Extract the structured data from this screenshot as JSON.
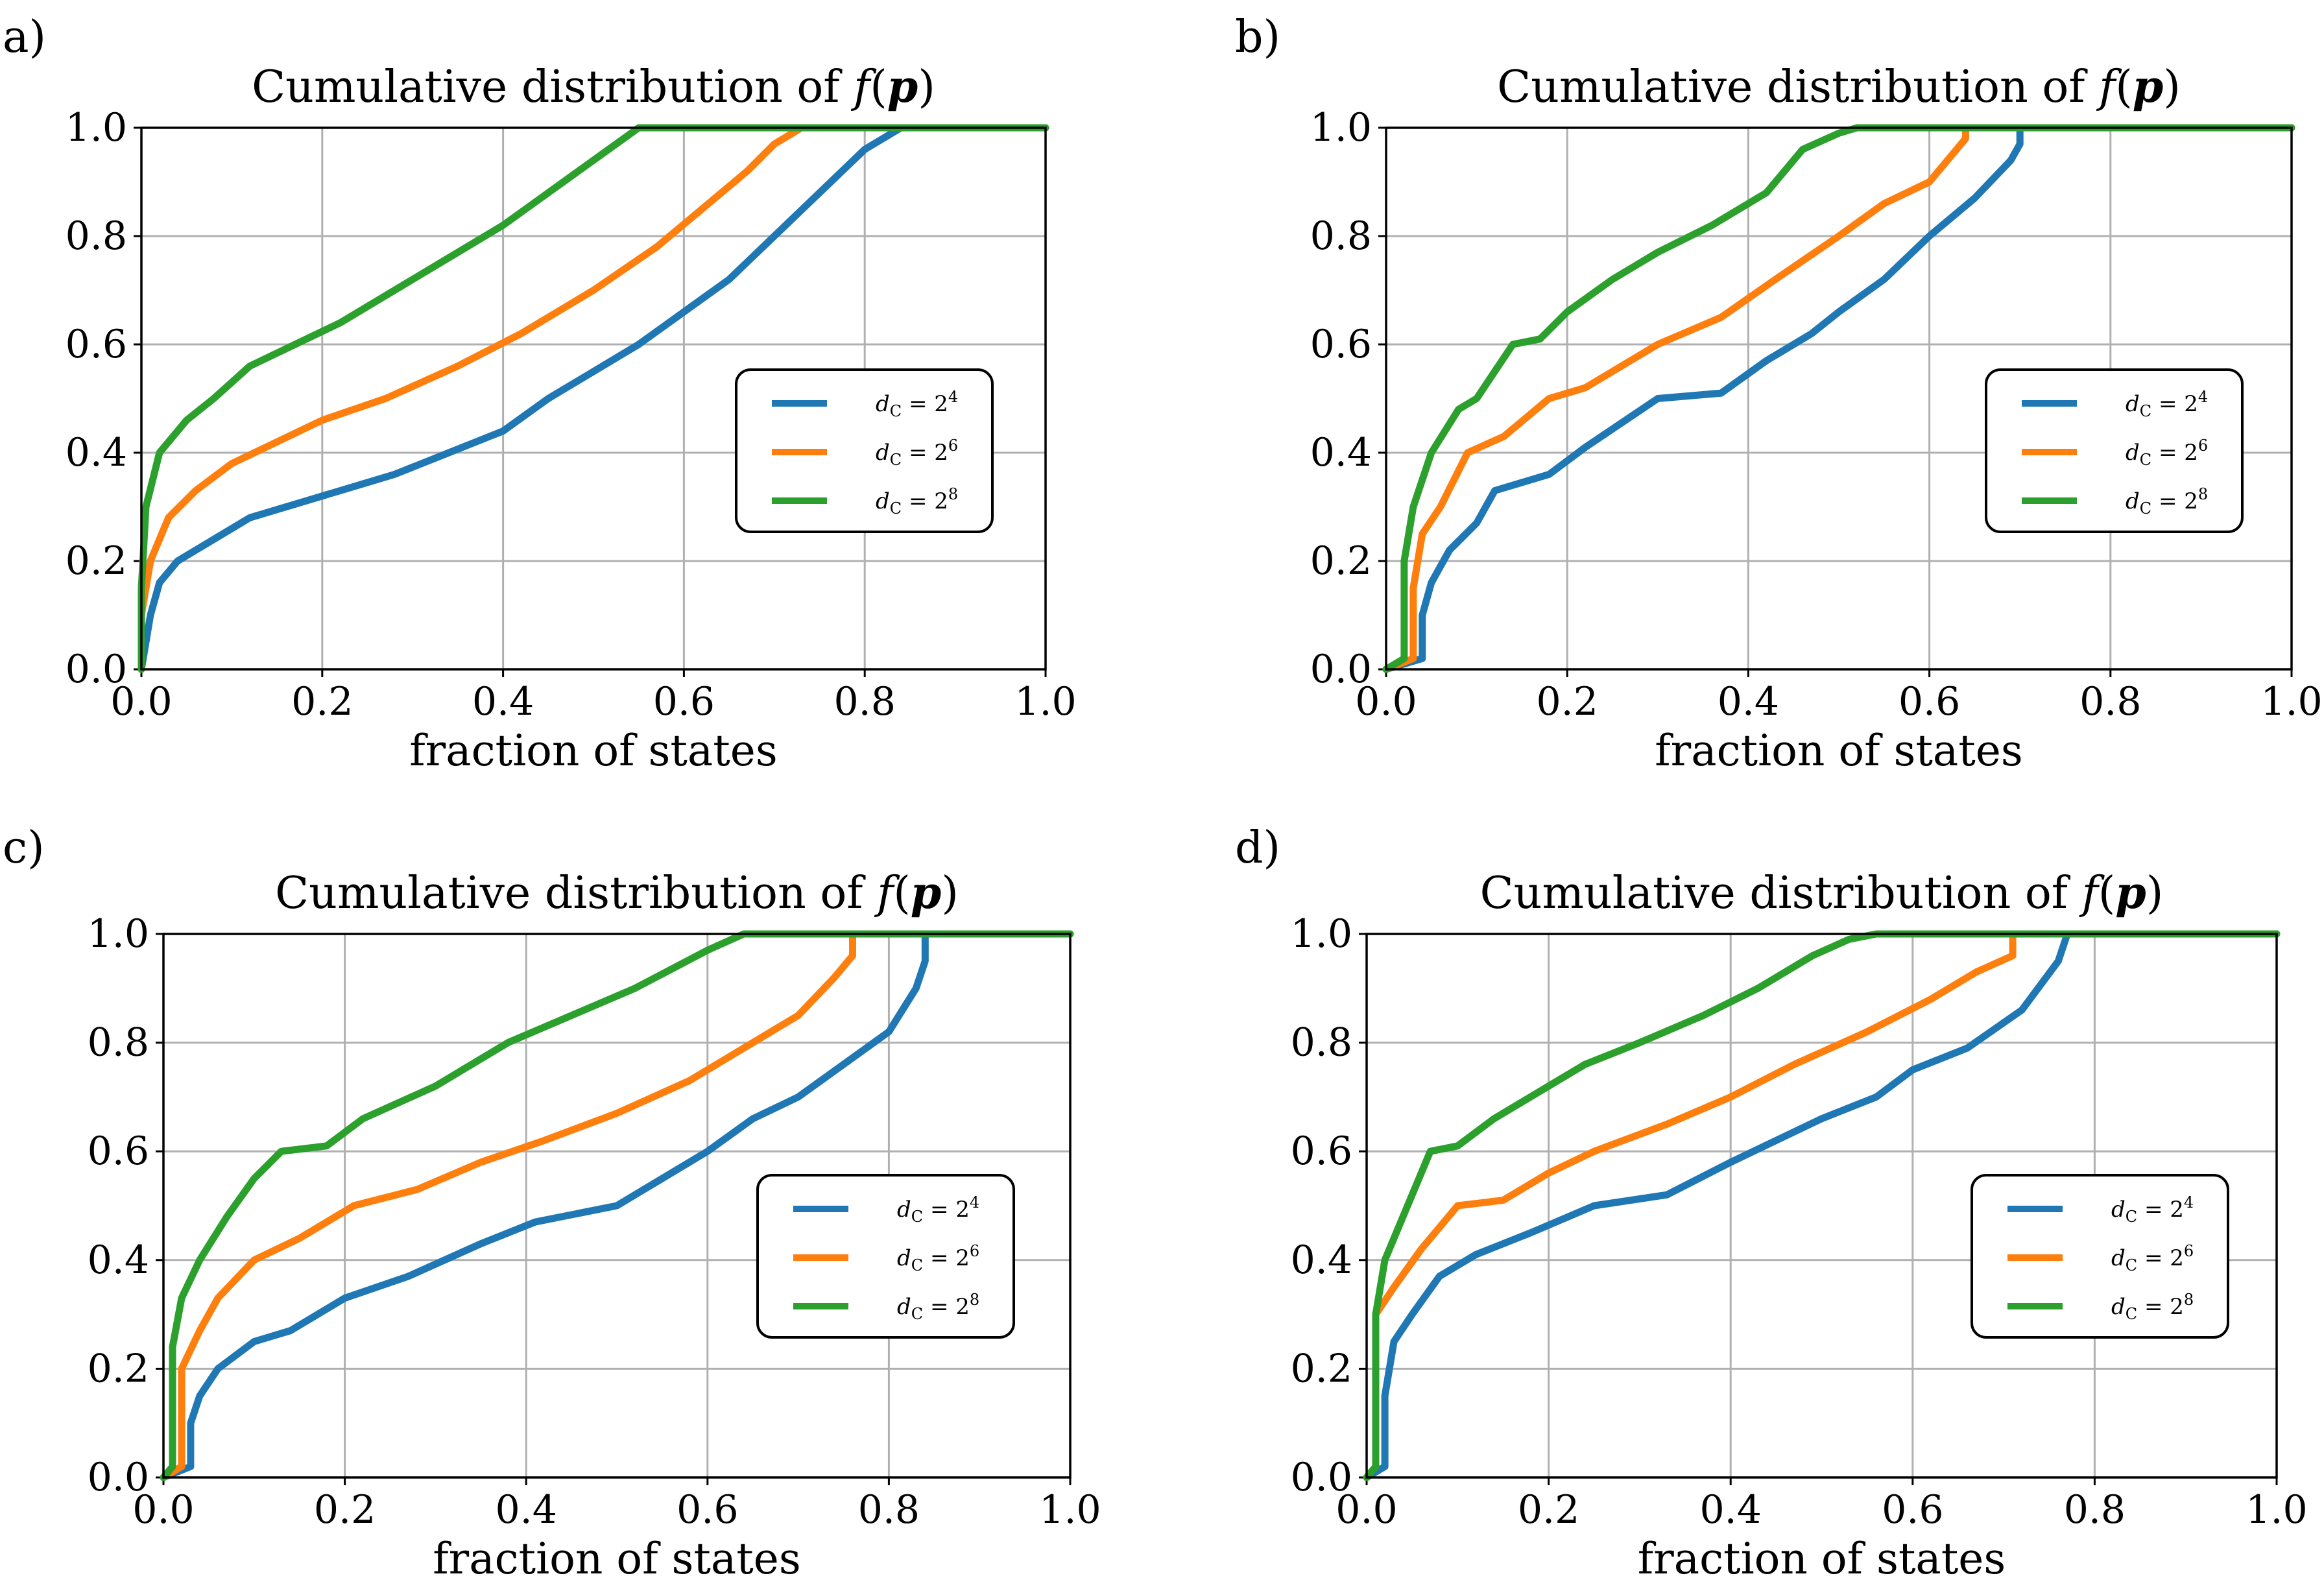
{
  "colors": {
    "s4": "#1f77b4",
    "s6": "#ff7f0e",
    "s8": "#2ca02c",
    "grid": "#b0b0b0"
  },
  "chart_data": [
    {
      "panel_label": "a)",
      "type": "line",
      "title": "Cumulative distribution of f(p)",
      "xlabel": "fraction of states",
      "ylabel": "",
      "xlim": [
        0,
        1
      ],
      "ylim": [
        0,
        1
      ],
      "xticks": [
        "0.0",
        "0.2",
        "0.4",
        "0.6",
        "0.8",
        "1.0"
      ],
      "yticks": [
        "0.0",
        "0.2",
        "0.4",
        "0.6",
        "0.8",
        "1.0"
      ],
      "grid": true,
      "legend_position": "center-right",
      "series": [
        {
          "name": "d_C = 2^4",
          "legend_base": "d",
          "legend_sub": "C",
          "legend_rhs": "= 2",
          "legend_exp": "4",
          "color": "#1f77b4",
          "x": [
            0.0,
            0.0,
            0.01,
            0.02,
            0.04,
            0.08,
            0.12,
            0.2,
            0.28,
            0.34,
            0.4,
            0.45,
            0.5,
            0.55,
            0.6,
            0.65,
            0.7,
            0.75,
            0.8,
            0.84,
            1.0
          ],
          "y": [
            0.0,
            0.0,
            0.1,
            0.16,
            0.2,
            0.24,
            0.28,
            0.32,
            0.36,
            0.4,
            0.44,
            0.5,
            0.55,
            0.6,
            0.66,
            0.72,
            0.8,
            0.88,
            0.96,
            1.0,
            1.0
          ]
        },
        {
          "name": "d_C = 2^6",
          "legend_base": "d",
          "legend_sub": "C",
          "legend_rhs": "= 2",
          "legend_exp": "6",
          "color": "#ff7f0e",
          "x": [
            0.0,
            0.0,
            0.01,
            0.03,
            0.06,
            0.1,
            0.15,
            0.2,
            0.27,
            0.35,
            0.42,
            0.5,
            0.57,
            0.62,
            0.67,
            0.7,
            0.73,
            0.74,
            1.0
          ],
          "y": [
            0.0,
            0.1,
            0.2,
            0.28,
            0.33,
            0.38,
            0.42,
            0.46,
            0.5,
            0.56,
            0.62,
            0.7,
            0.78,
            0.85,
            0.92,
            0.97,
            1.0,
            1.0,
            1.0
          ]
        },
        {
          "name": "d_C = 2^8",
          "legend_base": "d",
          "legend_sub": "C",
          "legend_rhs": "= 2",
          "legend_exp": "8",
          "color": "#2ca02c",
          "x": [
            0.0,
            0.0,
            0.005,
            0.02,
            0.05,
            0.08,
            0.12,
            0.17,
            0.22,
            0.28,
            0.34,
            0.4,
            0.45,
            0.5,
            0.55,
            0.56,
            1.0
          ],
          "y": [
            0.0,
            0.15,
            0.3,
            0.4,
            0.46,
            0.5,
            0.56,
            0.6,
            0.64,
            0.7,
            0.76,
            0.82,
            0.88,
            0.94,
            1.0,
            1.0,
            1.0
          ]
        }
      ]
    },
    {
      "panel_label": "b)",
      "type": "line",
      "title": "Cumulative distribution of f(p)",
      "xlabel": "fraction of states",
      "ylabel": "",
      "xlim": [
        0,
        1
      ],
      "ylim": [
        0,
        1
      ],
      "xticks": [
        "0.0",
        "0.2",
        "0.4",
        "0.6",
        "0.8",
        "1.0"
      ],
      "yticks": [
        "0.0",
        "0.2",
        "0.4",
        "0.6",
        "0.8",
        "1.0"
      ],
      "grid": true,
      "legend_position": "center-right",
      "series": [
        {
          "name": "d_C = 2^4",
          "legend_base": "d",
          "legend_sub": "C",
          "legend_rhs": "= 2",
          "legend_exp": "4",
          "color": "#1f77b4",
          "x": [
            0.0,
            0.04,
            0.04,
            0.05,
            0.07,
            0.1,
            0.12,
            0.18,
            0.22,
            0.3,
            0.37,
            0.42,
            0.47,
            0.5,
            0.55,
            0.6,
            0.65,
            0.69,
            0.7,
            0.7,
            1.0
          ],
          "y": [
            0.0,
            0.02,
            0.1,
            0.16,
            0.22,
            0.27,
            0.33,
            0.36,
            0.41,
            0.5,
            0.51,
            0.57,
            0.62,
            0.66,
            0.72,
            0.8,
            0.87,
            0.94,
            0.97,
            1.0,
            1.0
          ]
        },
        {
          "name": "d_C = 2^6",
          "legend_base": "d",
          "legend_sub": "C",
          "legend_rhs": "= 2",
          "legend_exp": "6",
          "color": "#ff7f0e",
          "x": [
            0.0,
            0.03,
            0.03,
            0.04,
            0.06,
            0.09,
            0.13,
            0.18,
            0.22,
            0.3,
            0.37,
            0.43,
            0.5,
            0.55,
            0.6,
            0.63,
            0.64,
            0.64,
            1.0
          ],
          "y": [
            0.0,
            0.02,
            0.15,
            0.25,
            0.3,
            0.4,
            0.43,
            0.5,
            0.52,
            0.6,
            0.65,
            0.72,
            0.8,
            0.86,
            0.9,
            0.96,
            0.98,
            1.0,
            1.0
          ]
        },
        {
          "name": "d_C = 2^8",
          "legend_base": "d",
          "legend_sub": "C",
          "legend_rhs": "= 2",
          "legend_exp": "8",
          "color": "#2ca02c",
          "x": [
            0.0,
            0.02,
            0.02,
            0.03,
            0.05,
            0.08,
            0.1,
            0.14,
            0.17,
            0.2,
            0.25,
            0.3,
            0.36,
            0.42,
            0.46,
            0.5,
            0.52,
            1.0
          ],
          "y": [
            0.0,
            0.02,
            0.2,
            0.3,
            0.4,
            0.48,
            0.5,
            0.6,
            0.61,
            0.66,
            0.72,
            0.77,
            0.82,
            0.88,
            0.96,
            0.99,
            1.0,
            1.0
          ]
        }
      ]
    },
    {
      "panel_label": "c)",
      "type": "line",
      "title": "Cumulative distribution of f(p)",
      "xlabel": "fraction of states",
      "ylabel": "",
      "xlim": [
        0,
        1
      ],
      "ylim": [
        0,
        1
      ],
      "xticks": [
        "0.0",
        "0.2",
        "0.4",
        "0.6",
        "0.8",
        "1.0"
      ],
      "yticks": [
        "0.0",
        "0.2",
        "0.4",
        "0.6",
        "0.8",
        "1.0"
      ],
      "grid": true,
      "legend_position": "center-right",
      "series": [
        {
          "name": "d_C = 2^4",
          "legend_base": "d",
          "legend_sub": "C",
          "legend_rhs": "= 2",
          "legend_exp": "4",
          "color": "#1f77b4",
          "x": [
            0.0,
            0.03,
            0.03,
            0.04,
            0.06,
            0.1,
            0.14,
            0.2,
            0.27,
            0.35,
            0.41,
            0.5,
            0.55,
            0.6,
            0.65,
            0.7,
            0.75,
            0.8,
            0.83,
            0.84,
            0.84,
            1.0
          ],
          "y": [
            0.0,
            0.02,
            0.1,
            0.15,
            0.2,
            0.25,
            0.27,
            0.33,
            0.37,
            0.43,
            0.47,
            0.5,
            0.55,
            0.6,
            0.66,
            0.7,
            0.76,
            0.82,
            0.9,
            0.95,
            1.0,
            1.0
          ]
        },
        {
          "name": "d_C = 2^6",
          "legend_base": "d",
          "legend_sub": "C",
          "legend_rhs": "= 2",
          "legend_exp": "6",
          "color": "#ff7f0e",
          "x": [
            0.0,
            0.02,
            0.02,
            0.04,
            0.06,
            0.1,
            0.15,
            0.21,
            0.28,
            0.35,
            0.42,
            0.5,
            0.58,
            0.65,
            0.7,
            0.74,
            0.76,
            0.76,
            1.0
          ],
          "y": [
            0.0,
            0.02,
            0.2,
            0.27,
            0.33,
            0.4,
            0.44,
            0.5,
            0.53,
            0.58,
            0.62,
            0.67,
            0.73,
            0.8,
            0.85,
            0.92,
            0.96,
            1.0,
            1.0
          ]
        },
        {
          "name": "d_C = 2^8",
          "legend_base": "d",
          "legend_sub": "C",
          "legend_rhs": "= 2",
          "legend_exp": "8",
          "color": "#2ca02c",
          "x": [
            0.0,
            0.01,
            0.01,
            0.02,
            0.04,
            0.07,
            0.1,
            0.13,
            0.18,
            0.22,
            0.3,
            0.38,
            0.45,
            0.52,
            0.6,
            0.64,
            1.0
          ],
          "y": [
            0.0,
            0.02,
            0.24,
            0.33,
            0.4,
            0.48,
            0.55,
            0.6,
            0.61,
            0.66,
            0.72,
            0.8,
            0.85,
            0.9,
            0.97,
            1.0,
            1.0
          ]
        }
      ]
    },
    {
      "panel_label": "d)",
      "type": "line",
      "title": "Cumulative distribution of f(p)",
      "xlabel": "fraction of states",
      "ylabel": "",
      "xlim": [
        0,
        1
      ],
      "ylim": [
        0,
        1
      ],
      "xticks": [
        "0.0",
        "0.2",
        "0.4",
        "0.6",
        "0.8",
        "1.0"
      ],
      "yticks": [
        "0.0",
        "0.2",
        "0.4",
        "0.6",
        "0.8",
        "1.0"
      ],
      "grid": true,
      "legend_position": "center-right",
      "series": [
        {
          "name": "d_C = 2^4",
          "legend_base": "d",
          "legend_sub": "C",
          "legend_rhs": "= 2",
          "legend_exp": "4",
          "color": "#1f77b4",
          "x": [
            0.0,
            0.02,
            0.02,
            0.03,
            0.05,
            0.08,
            0.12,
            0.18,
            0.25,
            0.33,
            0.4,
            0.45,
            0.5,
            0.56,
            0.6,
            0.66,
            0.72,
            0.76,
            0.77,
            1.0
          ],
          "y": [
            0.0,
            0.02,
            0.15,
            0.25,
            0.3,
            0.37,
            0.41,
            0.45,
            0.5,
            0.52,
            0.58,
            0.62,
            0.66,
            0.7,
            0.75,
            0.79,
            0.86,
            0.95,
            1.0,
            1.0
          ]
        },
        {
          "name": "d_C = 2^6",
          "legend_base": "d",
          "legend_sub": "C",
          "legend_rhs": "= 2",
          "legend_exp": "6",
          "color": "#ff7f0e",
          "x": [
            0.0,
            0.01,
            0.01,
            0.03,
            0.06,
            0.1,
            0.15,
            0.2,
            0.25,
            0.33,
            0.4,
            0.47,
            0.55,
            0.62,
            0.67,
            0.71,
            0.71,
            1.0
          ],
          "y": [
            0.0,
            0.02,
            0.3,
            0.35,
            0.42,
            0.5,
            0.51,
            0.56,
            0.6,
            0.65,
            0.7,
            0.76,
            0.82,
            0.88,
            0.93,
            0.96,
            1.0,
            1.0
          ]
        },
        {
          "name": "d_C = 2^8",
          "legend_base": "d",
          "legend_sub": "C",
          "legend_rhs": "= 2",
          "legend_exp": "8",
          "color": "#2ca02c",
          "x": [
            0.0,
            0.01,
            0.01,
            0.02,
            0.04,
            0.07,
            0.1,
            0.14,
            0.18,
            0.24,
            0.3,
            0.37,
            0.43,
            0.49,
            0.53,
            0.56,
            1.0
          ],
          "y": [
            0.0,
            0.02,
            0.3,
            0.4,
            0.48,
            0.6,
            0.61,
            0.66,
            0.7,
            0.76,
            0.8,
            0.85,
            0.9,
            0.96,
            0.99,
            1.0,
            1.0
          ]
        }
      ]
    }
  ]
}
